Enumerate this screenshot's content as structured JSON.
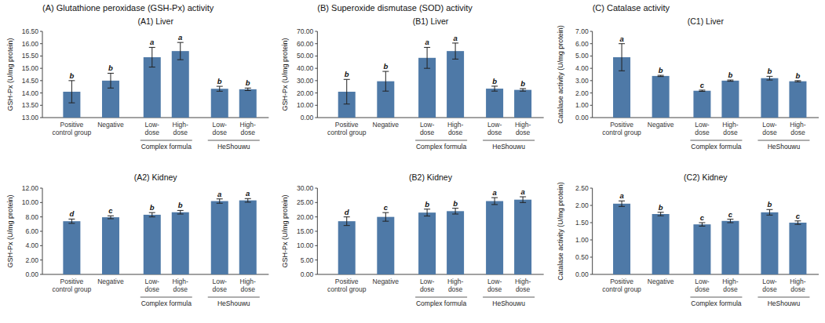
{
  "chart_data": [
    {
      "type": "bar",
      "title": "(A) Glutathione peroxidase (GSH-Px) activity",
      "subtitle": "(A1) Liver",
      "ylabel": "GSH-Px (U/mg protein)",
      "categories": [
        "Positive\ncontrol group",
        "Negative",
        "Low-\ndose",
        "High-\ndose",
        "Low-\ndose",
        "High-\ndose"
      ],
      "groups": [
        null,
        null,
        "Complex formula",
        "Complex formula",
        "HeShouwu",
        "HeShouwu"
      ],
      "values": [
        14.05,
        14.5,
        15.45,
        15.7,
        14.17,
        14.15
      ],
      "errors": [
        0.45,
        0.3,
        0.4,
        0.35,
        0.1,
        0.05
      ],
      "letters": [
        "b",
        "b",
        "a",
        "a",
        "b",
        "b"
      ],
      "ylim": [
        13.0,
        16.5
      ],
      "yticks": [
        {
          "value": 13.0,
          "label": "13.00"
        },
        {
          "value": 13.5,
          "label": "13.50"
        },
        {
          "value": 14.0,
          "label": "14.00"
        },
        {
          "value": 14.5,
          "label": "14.50"
        },
        {
          "value": 15.0,
          "label": "15.00"
        },
        {
          "value": 15.5,
          "label": "15.50"
        },
        {
          "value": 16.0,
          "label": "16.00"
        },
        {
          "value": 16.5,
          "label": "16.50"
        }
      ],
      "grid": false
    },
    {
      "type": "bar",
      "title": "(B) Superoxide dismutase (SOD) activity",
      "subtitle": "(B1) Liver",
      "ylabel": "GSH-Px (U/mg protein)",
      "categories": [
        "Positive\ncontrol group",
        "Negative",
        "Low-\ndose",
        "High-\ndose",
        "Low-\ndose",
        "High-\ndose"
      ],
      "groups": [
        null,
        null,
        "Complex formula",
        "Complex formula",
        "HeShouwu",
        "HeShouwu"
      ],
      "values": [
        21.0,
        29.5,
        48.5,
        54.0,
        23.5,
        22.5
      ],
      "errors": [
        10.0,
        8.0,
        8.5,
        6.5,
        2.0,
        1.0
      ],
      "letters": [
        "b",
        "b",
        "a",
        "a",
        "b",
        "b"
      ],
      "ylim": [
        0,
        70
      ],
      "yticks": [
        {
          "value": 0,
          "label": "0.00"
        },
        {
          "value": 10.0,
          "label": "10.00"
        },
        {
          "value": 20.0,
          "label": "20.00"
        },
        {
          "value": 30.0,
          "label": "30.00"
        },
        {
          "value": 40.0,
          "label": "40.00"
        },
        {
          "value": 50.0,
          "label": "50.00"
        },
        {
          "value": 60.0,
          "label": "60.00"
        },
        {
          "value": 70.0,
          "label": "70.00"
        }
      ],
      "grid": false
    },
    {
      "type": "bar",
      "title": "(C) Catalase activity",
      "subtitle": "(C1) Liver",
      "ylabel": "Catalase activity (U/mg protein)",
      "categories": [
        "Positive\ncontrol group",
        "Negative",
        "Low-\ndose",
        "High-\ndose",
        "Low-\ndose",
        "High-\ndose"
      ],
      "groups": [
        null,
        null,
        "Complex formula",
        "Complex formula",
        "HeShouwu",
        "HeShouwu"
      ],
      "values": [
        4.9,
        3.38,
        2.18,
        3.0,
        3.2,
        2.95
      ],
      "errors": [
        1.1,
        0.05,
        0.05,
        0.05,
        0.15,
        0.05
      ],
      "letters": [
        "a",
        "b",
        "c",
        "b",
        "b",
        "b"
      ],
      "ylim": [
        0,
        7.0
      ],
      "yticks": [
        {
          "value": 0,
          "label": "0.00"
        },
        {
          "value": 1.0,
          "label": "1.00"
        },
        {
          "value": 2.0,
          "label": "2.00"
        },
        {
          "value": 3.0,
          "label": "3.00"
        },
        {
          "value": 4.0,
          "label": "4.00"
        },
        {
          "value": 5.0,
          "label": "5.00"
        },
        {
          "value": 6.0,
          "label": "6.00"
        },
        {
          "value": 7.0,
          "label": "7.00"
        }
      ],
      "grid": false
    },
    {
      "type": "bar",
      "subtitle": "(A2) Kidney",
      "ylabel": "GSH-Px (U/mg protein)",
      "categories": [
        "Positive\ncontrol group",
        "Negative",
        "Low-\ndose",
        "High-\ndose",
        "Low-\ndose",
        "High-\ndose"
      ],
      "groups": [
        null,
        null,
        "Complex formula",
        "Complex formula",
        "HeShouwu",
        "HeShouwu"
      ],
      "values": [
        7.4,
        7.95,
        8.3,
        8.65,
        10.2,
        10.3
      ],
      "errors": [
        0.3,
        0.2,
        0.3,
        0.25,
        0.3,
        0.25
      ],
      "letters": [
        "d",
        "c",
        "b",
        "b",
        "a",
        "a"
      ],
      "ylim": [
        0,
        12.0
      ],
      "yticks": [
        {
          "value": 0,
          "label": "0.00"
        },
        {
          "value": 2.0,
          "label": "2.00"
        },
        {
          "value": 4.0,
          "label": "4.00"
        },
        {
          "value": 6.0,
          "label": "6.00"
        },
        {
          "value": 8.0,
          "label": "8.00"
        },
        {
          "value": 10.0,
          "label": "10.00"
        },
        {
          "value": 12.0,
          "label": "12.00"
        }
      ],
      "grid": false
    },
    {
      "type": "bar",
      "subtitle": "(B2) Kidney",
      "ylabel": "GSH-Px (U/mg protein)",
      "categories": [
        "Positive\ncontrol group",
        "Negative",
        "Low-\ndose",
        "High-\ndose",
        "Low-\ndose",
        "High-\ndose"
      ],
      "groups": [
        null,
        null,
        "Complex formula",
        "Complex formula",
        "HeShouwu",
        "HeShouwu"
      ],
      "values": [
        18.5,
        20.0,
        21.5,
        22.0,
        25.5,
        26.0
      ],
      "errors": [
        1.5,
        1.5,
        1.2,
        1.0,
        1.2,
        1.0
      ],
      "letters": [
        "d",
        "c",
        "b",
        "b",
        "a",
        "a"
      ],
      "ylim": [
        0,
        30.0
      ],
      "yticks": [
        {
          "value": 0,
          "label": "0.00"
        },
        {
          "value": 5.0,
          "label": "5.00"
        },
        {
          "value": 10.0,
          "label": "10.00"
        },
        {
          "value": 15.0,
          "label": "15.00"
        },
        {
          "value": 20.0,
          "label": "20.00"
        },
        {
          "value": 25.0,
          "label": "25.00"
        },
        {
          "value": 30.0,
          "label": "30.00"
        }
      ],
      "grid": false
    },
    {
      "type": "bar",
      "subtitle": "(C2) Kidney",
      "ylabel": "Catalase activity (U/mg protein)",
      "categories": [
        "Positive\ncontrol group",
        "Negative",
        "Low-\ndose",
        "High-\ndose",
        "Low-\ndose",
        "High-\ndose"
      ],
      "groups": [
        null,
        null,
        "Complex formula",
        "Complex formula",
        "HeShouwu",
        "HeShouwu"
      ],
      "values": [
        2.05,
        1.75,
        1.45,
        1.55,
        1.8,
        1.5
      ],
      "errors": [
        0.08,
        0.05,
        0.05,
        0.05,
        0.08,
        0.05
      ],
      "letters": [
        "a",
        "b",
        "c",
        "c",
        "b",
        "c"
      ],
      "ylim": [
        0,
        2.5
      ],
      "yticks": [
        {
          "value": 0,
          "label": "0.00"
        },
        {
          "value": 0.5,
          "label": "0.50"
        },
        {
          "value": 1.0,
          "label": "1.00"
        },
        {
          "value": 1.5,
          "label": "1.50"
        },
        {
          "value": 2.0,
          "label": "2.00"
        },
        {
          "value": 2.5,
          "label": "2.50"
        }
      ],
      "grid": false
    }
  ]
}
